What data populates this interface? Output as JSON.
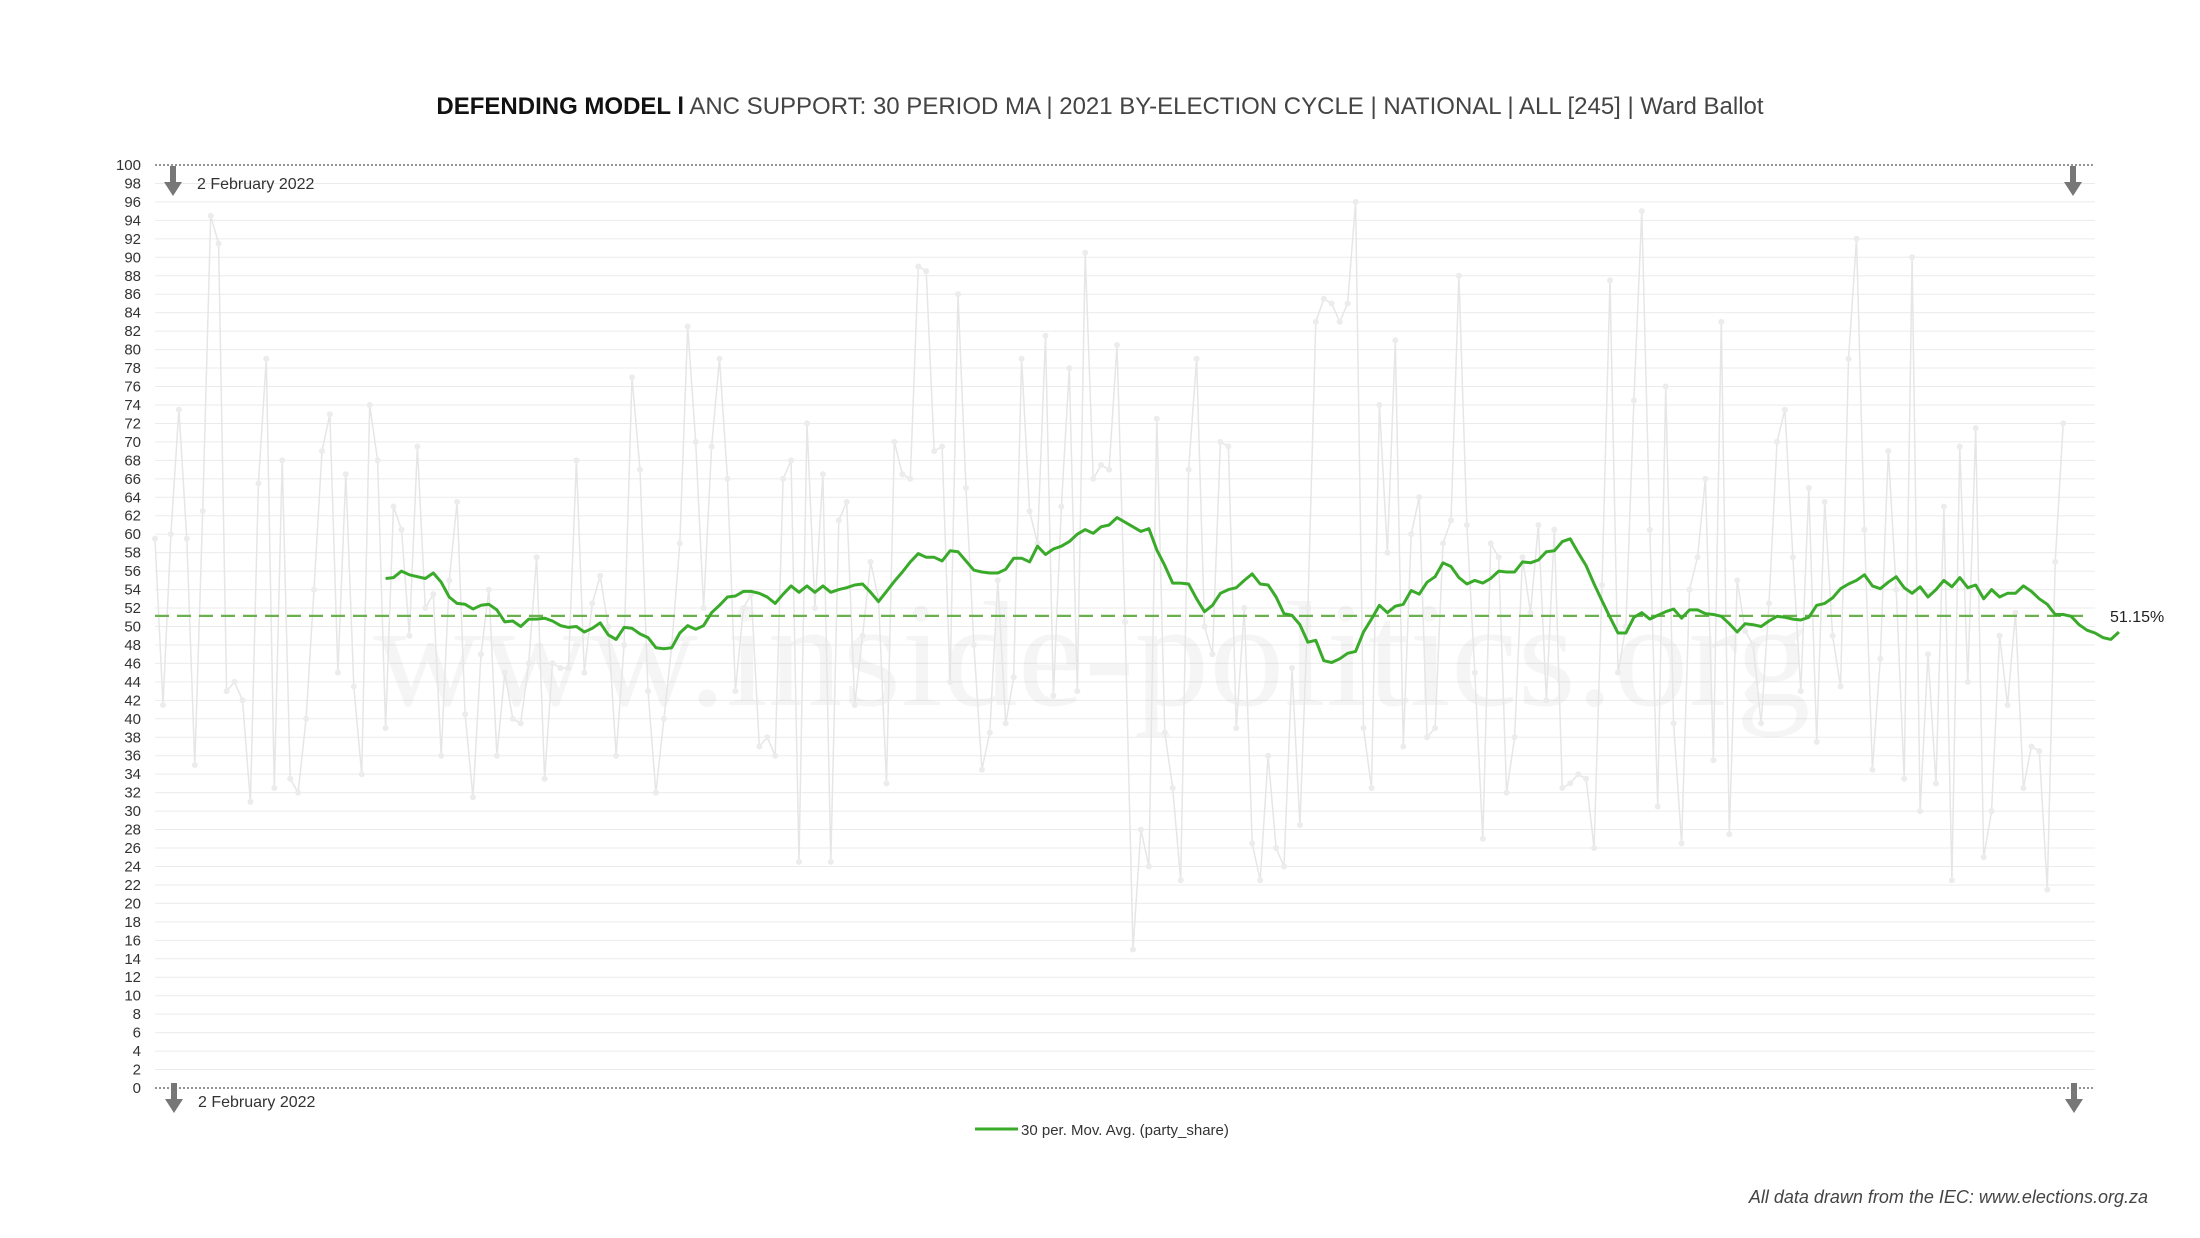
{
  "title": {
    "bold": "DEFENDING MODEL l",
    "rest": " ANC SUPPORT: 30 PERIOD MA | 2021 BY-ELECTION CYCLE | NATIONAL | ALL [245] | Ward Ballot"
  },
  "footer": "All data drawn from the IEC: www.elections.org.za",
  "watermark": "www.inside-politics.org",
  "colors": {
    "ma_line": "#3aaa2a",
    "average_line": "#6ab04c",
    "raw_series": "#e6e6e6",
    "grid": "#ebebeb"
  },
  "chart_data": {
    "type": "line",
    "title": "DEFENDING MODEL l ANC SUPPORT: 30 PERIOD MA | 2021 BY-ELECTION CYCLE | NATIONAL | ALL [245] | Ward Ballot",
    "xlabel": "",
    "ylabel": "",
    "ylim": [
      0,
      100
    ],
    "yticks": [
      0,
      2,
      4,
      6,
      8,
      10,
      12,
      14,
      16,
      18,
      20,
      22,
      24,
      26,
      28,
      30,
      32,
      34,
      36,
      38,
      40,
      42,
      44,
      46,
      48,
      50,
      52,
      54,
      56,
      58,
      60,
      62,
      64,
      66,
      68,
      70,
      72,
      74,
      76,
      78,
      80,
      82,
      84,
      86,
      88,
      90,
      92,
      94,
      96,
      98,
      100
    ],
    "grid": true,
    "legend_position": "bottom-center",
    "n_points": 245,
    "ma_window": 30,
    "markers": [
      {
        "label": "2 February 2022",
        "position": "top-left"
      },
      {
        "label": "2 February 2022",
        "position": "bottom-left"
      }
    ],
    "average_line": {
      "value": 51.15,
      "label": "51.15%"
    },
    "series": [
      {
        "name": "party_share",
        "legend": false,
        "values": [
          59.5,
          41.5,
          60,
          73.5,
          59.5,
          35,
          62.5,
          94.5,
          91.5,
          43,
          44,
          42,
          31,
          65.5,
          79,
          32.5,
          68,
          33.5,
          32,
          40,
          54,
          69,
          73,
          45,
          66.5,
          43.5,
          34,
          74,
          68,
          39,
          63,
          60.5,
          49,
          69.5,
          52,
          53.5,
          36,
          55,
          63.5,
          40.5,
          31.5,
          47,
          54,
          36,
          45,
          40,
          39.5,
          46,
          57.5,
          33.5,
          46,
          45.5,
          45.5,
          68,
          45,
          52.5,
          55.5,
          50,
          36,
          48,
          77,
          67,
          43,
          32,
          40,
          48,
          59,
          82.5,
          70,
          52,
          69.5,
          79,
          66,
          43,
          52,
          53.5,
          37,
          38,
          36,
          66,
          68,
          24.5,
          72,
          52,
          66.5,
          24.5,
          61.5,
          63.5,
          41.5,
          49,
          57,
          53,
          33,
          70,
          66.5,
          66,
          89,
          88.5,
          69,
          69.5,
          44,
          86,
          65,
          48,
          34.5,
          38.5,
          55,
          39.5,
          44.5,
          79,
          62.5,
          59,
          81.5,
          42.5,
          63,
          78,
          43,
          90.5,
          66,
          67.5,
          67,
          80.5,
          50.5,
          15,
          28,
          24,
          72.5,
          38.5,
          32.5,
          22.5,
          67,
          79,
          50,
          47,
          70,
          69.5,
          39,
          52,
          26.5,
          22.5,
          36,
          26,
          24,
          45.5,
          28.5,
          52,
          83,
          85.5,
          85,
          83,
          85,
          96,
          39,
          32.5,
          74,
          58,
          81,
          37,
          60,
          64,
          38,
          39,
          59,
          61.5,
          88,
          61,
          45,
          27,
          59,
          57.5,
          32,
          38,
          57.5,
          51.5,
          61,
          42,
          60.5,
          32.5,
          33,
          34,
          33.5,
          26,
          54.5,
          87.5,
          45,
          50,
          74.5,
          95,
          60.5,
          30.5,
          76,
          39.5,
          26.5,
          54,
          57.5,
          66,
          35.5,
          83,
          27.5,
          55,
          49.5,
          48,
          39.5,
          52.5,
          70,
          73.5,
          57.5,
          43,
          65,
          37.5,
          63.5,
          49,
          43.5,
          79,
          92,
          60.5,
          34.5,
          46.5,
          69,
          54,
          33.5,
          90,
          30,
          47,
          33,
          63,
          22.5,
          69.5,
          44,
          71.5,
          25,
          30,
          49,
          41.5,
          51.5,
          32.5,
          37,
          36.5,
          21.5,
          57,
          72
        ]
      },
      {
        "name": "30 per. Mov. Avg. (party_share)",
        "legend": true,
        "start_index": 29,
        "values": [
          55.2,
          55.3,
          56.0,
          55.6,
          55.4,
          55.2,
          55.8,
          54.8,
          53.2,
          52.5,
          52.4,
          51.9,
          52.3,
          52.4,
          51.8,
          50.5,
          50.6,
          50.0,
          50.8,
          50.8,
          50.9,
          50.6,
          50.1,
          49.9,
          50.0,
          49.4,
          49.8,
          50.4,
          49.1,
          48.6,
          49.9,
          49.8,
          49.2,
          48.8,
          47.7,
          47.6,
          47.7,
          49.3,
          50.1,
          49.7,
          50.1,
          51.5,
          52.3,
          53.2,
          53.3,
          53.8,
          53.8,
          53.6,
          53.2,
          52.5,
          53.5,
          54.4,
          53.7,
          54.4,
          53.7,
          54.4,
          53.7,
          54.0,
          54.2,
          54.5,
          54.6,
          53.7,
          52.7,
          53.8,
          54.9,
          55.9,
          57.0,
          57.9,
          57.5,
          57.5,
          57.1,
          58.2,
          58.1,
          57.1,
          56.1,
          55.9,
          55.8,
          55.8,
          56.2,
          57.4,
          57.4,
          57.0,
          58.7,
          57.8,
          58.4,
          58.7,
          59.2,
          60.0,
          60.5,
          60.1,
          60.8,
          61.0,
          61.8,
          61.3,
          60.8,
          60.3,
          60.6,
          58.3,
          56.6,
          54.7,
          54.7,
          54.6,
          53.0,
          51.6,
          52.3,
          53.6,
          54.0,
          54.2,
          55.0,
          55.7,
          54.6,
          54.5,
          53.2,
          51.4,
          51.2,
          50.2,
          48.3,
          48.5,
          46.3,
          46.1,
          46.5,
          47.1,
          47.3,
          49.4,
          50.8,
          52.3,
          51.5,
          52.2,
          52.4,
          53.9,
          53.5,
          54.8,
          55.4,
          56.9,
          56.5,
          55.3,
          54.6,
          55.0,
          54.7,
          55.2,
          56.0,
          55.9,
          55.9,
          57.0,
          56.9,
          57.2,
          58.1,
          58.2,
          59.2,
          59.5,
          58.0,
          56.6,
          54.6,
          52.8,
          51.0,
          49.3,
          49.3,
          51.0,
          51.5,
          50.8,
          51.2,
          51.6,
          51.9,
          50.9,
          51.8,
          51.8,
          51.4,
          51.3,
          51.1,
          50.3,
          49.4,
          50.3,
          50.2,
          50.0,
          50.6,
          51.1,
          51.0,
          50.8,
          50.7,
          51.0,
          52.3,
          52.5,
          53.1,
          54.1,
          54.6,
          55.0,
          55.6,
          54.4,
          54.1,
          54.8,
          55.4,
          54.2,
          53.6,
          54.3,
          53.2,
          54.0,
          55.0,
          54.3,
          55.3,
          54.2,
          54.5,
          53.0,
          54.0,
          53.2,
          53.6,
          53.6,
          54.4,
          53.8,
          53.0,
          52.4,
          51.3,
          51.3,
          51.1,
          50.2,
          49.6,
          49.3,
          48.8,
          48.6,
          49.4
        ]
      }
    ]
  }
}
